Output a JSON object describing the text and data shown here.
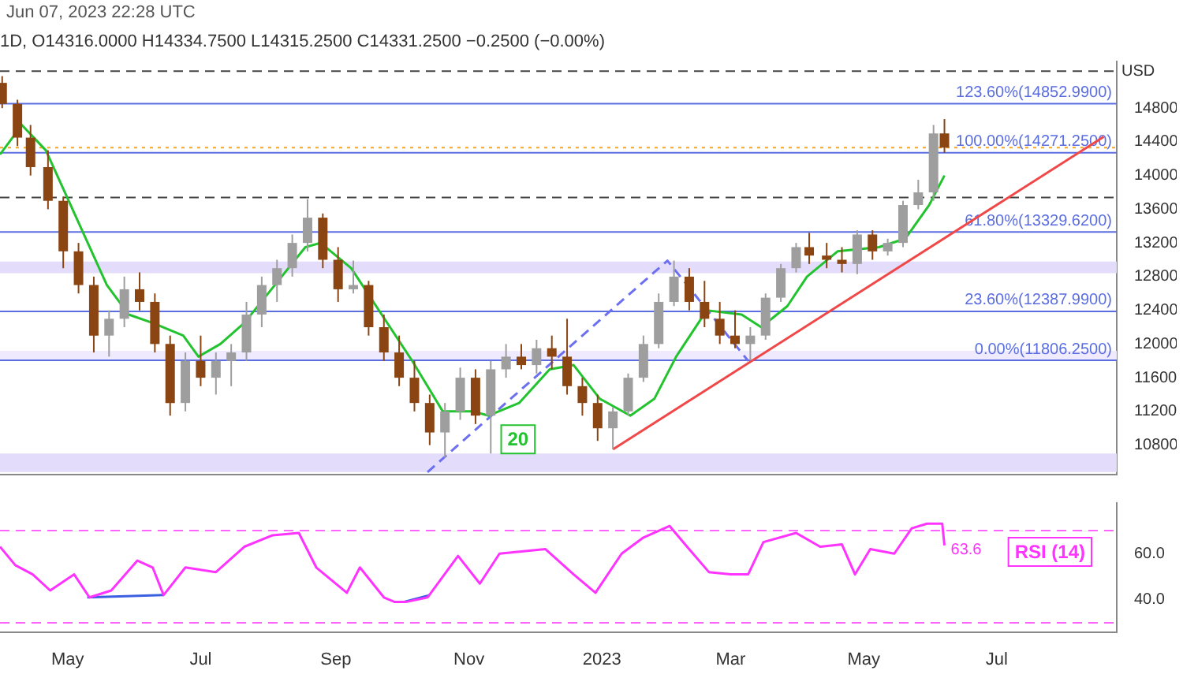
{
  "chart_data": [
    {
      "type": "candlestick",
      "title": "1D, O14316.0000 H14334.7500 L14315.2500 C14331.2500 −0.2500 (−0.00%)",
      "ylabel": "USD",
      "annotations": [
        "Jun 07, 2023 22:28 UTC"
      ],
      "x": [
        "2022-04-01",
        "2022-04-08",
        "2022-04-14",
        "2022-04-22",
        "2022-04-29",
        "2022-05-06",
        "2022-05-13",
        "2022-05-20",
        "2022-05-27",
        "2022-06-03",
        "2022-06-10",
        "2022-06-17",
        "2022-06-24",
        "2022-07-01",
        "2022-07-08",
        "2022-07-15",
        "2022-07-22",
        "2022-07-29",
        "2022-08-05",
        "2022-08-12",
        "2022-08-19",
        "2022-08-26",
        "2022-09-02",
        "2022-09-09",
        "2022-09-16",
        "2022-09-23",
        "2022-09-30",
        "2022-10-07",
        "2022-10-14",
        "2022-10-21",
        "2022-10-28",
        "2022-11-04",
        "2022-11-11",
        "2022-11-18",
        "2022-11-25",
        "2022-12-02",
        "2022-12-09",
        "2022-12-16",
        "2022-12-23",
        "2022-12-30",
        "2023-01-06",
        "2023-01-13",
        "2023-01-20",
        "2023-01-27",
        "2023-02-03",
        "2023-02-10",
        "2023-02-17",
        "2023-02-24",
        "2023-03-03",
        "2023-03-10",
        "2023-03-17",
        "2023-03-24",
        "2023-03-31",
        "2023-04-06",
        "2023-04-14",
        "2023-04-21",
        "2023-04-28",
        "2023-05-05",
        "2023-05-12",
        "2023-05-19",
        "2023-05-26",
        "2023-06-02",
        "2023-06-07"
      ],
      "ohlc": [
        [
          15100,
          15180,
          14800,
          14850
        ],
        [
          14850,
          14900,
          14350,
          14450
        ],
        [
          14450,
          14600,
          14000,
          14100
        ],
        [
          14100,
          14300,
          13600,
          13700
        ],
        [
          13700,
          13750,
          12900,
          13100
        ],
        [
          13100,
          13200,
          12600,
          12700
        ],
        [
          12700,
          12800,
          11900,
          12100
        ],
        [
          12100,
          12400,
          11850,
          12300
        ],
        [
          12300,
          12800,
          12200,
          12650
        ],
        [
          12650,
          12850,
          12400,
          12500
        ],
        [
          12500,
          12600,
          11900,
          12000
        ],
        [
          12000,
          12100,
          11150,
          11300
        ],
        [
          11300,
          11900,
          11200,
          11800
        ],
        [
          11800,
          12100,
          11500,
          11600
        ],
        [
          11600,
          11900,
          11400,
          11800
        ],
        [
          11800,
          12000,
          11500,
          11900
        ],
        [
          11900,
          12500,
          11800,
          12350
        ],
        [
          12350,
          12800,
          12200,
          12700
        ],
        [
          12700,
          13000,
          12500,
          12900
        ],
        [
          12900,
          13300,
          12800,
          13200
        ],
        [
          13200,
          13720,
          13100,
          13500
        ],
        [
          13500,
          13550,
          12900,
          13000
        ],
        [
          13000,
          13150,
          12500,
          12650
        ],
        [
          12650,
          12990,
          12600,
          12700
        ],
        [
          12700,
          12750,
          12100,
          12200
        ],
        [
          12200,
          12350,
          11800,
          11900
        ],
        [
          11900,
          12100,
          11500,
          11600
        ],
        [
          11600,
          11800,
          11200,
          11300
        ],
        [
          11300,
          11400,
          10800,
          10950
        ],
        [
          10950,
          11300,
          10650,
          11200
        ],
        [
          11200,
          11720,
          11100,
          11600
        ],
        [
          11600,
          11700,
          11050,
          11150
        ],
        [
          11150,
          11800,
          10700,
          11700
        ],
        [
          11700,
          12000,
          11600,
          11850
        ],
        [
          11850,
          12000,
          11700,
          11750
        ],
        [
          11750,
          12050,
          11650,
          11950
        ],
        [
          11950,
          12100,
          11700,
          11850
        ],
        [
          11850,
          12300,
          11400,
          11500
        ],
        [
          11500,
          11600,
          11150,
          11300
        ],
        [
          11300,
          11400,
          10850,
          11000
        ],
        [
          11000,
          11250,
          10750,
          11200
        ],
        [
          11200,
          11650,
          11150,
          11600
        ],
        [
          11600,
          12100,
          11550,
          12000
        ],
        [
          12000,
          12600,
          11950,
          12500
        ],
        [
          12500,
          12990,
          12450,
          12800
        ],
        [
          12800,
          12900,
          12400,
          12500
        ],
        [
          12500,
          12750,
          12200,
          12300
        ],
        [
          12300,
          12500,
          12000,
          12100
        ],
        [
          12100,
          12400,
          11950,
          12000
        ],
        [
          12000,
          12200,
          11806,
          12100
        ],
        [
          12100,
          12600,
          12050,
          12550
        ],
        [
          12550,
          12950,
          12500,
          12900
        ],
        [
          12900,
          13200,
          12850,
          13150
        ],
        [
          13150,
          13320,
          12950,
          13050
        ],
        [
          13050,
          13200,
          12900,
          13000
        ],
        [
          13000,
          13150,
          12850,
          12950
        ],
        [
          12950,
          13350,
          12830,
          13300
        ],
        [
          13300,
          13350,
          13000,
          13100
        ],
        [
          13100,
          13250,
          13050,
          13200
        ],
        [
          13200,
          13700,
          13150,
          13650
        ],
        [
          13650,
          13950,
          13600,
          13800
        ],
        [
          13800,
          14600,
          13700,
          14500
        ],
        [
          14500,
          14670,
          14271,
          14331
        ]
      ],
      "colors": [
        "#8b4513",
        "#8b4513",
        "#8b4513",
        "#8b4513",
        "#8b4513",
        "#8b4513",
        "#8b4513",
        "#9e9e9e",
        "#9e9e9e",
        "#8b4513",
        "#8b4513",
        "#8b4513",
        "#9e9e9e",
        "#8b4513",
        "#9e9e9e",
        "#9e9e9e",
        "#9e9e9e",
        "#9e9e9e",
        "#9e9e9e",
        "#9e9e9e",
        "#9e9e9e",
        "#8b4513",
        "#8b4513",
        "#9e9e9e",
        "#8b4513",
        "#8b4513",
        "#8b4513",
        "#8b4513",
        "#8b4513",
        "#9e9e9e",
        "#9e9e9e",
        "#8b4513",
        "#9e9e9e",
        "#9e9e9e",
        "#8b4513",
        "#9e9e9e",
        "#8b4513",
        "#8b4513",
        "#8b4513",
        "#8b4513",
        "#9e9e9e",
        "#9e9e9e",
        "#9e9e9e",
        "#9e9e9e",
        "#9e9e9e",
        "#8b4513",
        "#8b4513",
        "#8b4513",
        "#8b4513",
        "#9e9e9e",
        "#9e9e9e",
        "#9e9e9e",
        "#9e9e9e",
        "#8b4513",
        "#8b4513",
        "#8b4513",
        "#9e9e9e",
        "#8b4513",
        "#9e9e9e",
        "#9e9e9e",
        "#9e9e9e",
        "#9e9e9e",
        "#8b4513"
      ],
      "series": [
        {
          "name": "20",
          "type": "line",
          "color": "#22c32e",
          "x": [
            "2022-03-31",
            "2022-04-10",
            "2022-04-21",
            "2022-05-05",
            "2022-05-19",
            "2022-05-29",
            "2022-06-09",
            "2022-06-23",
            "2022-06-30",
            "2022-07-10",
            "2022-07-21",
            "2022-08-04",
            "2022-08-18",
            "2022-08-25",
            "2022-09-08",
            "2022-09-22",
            "2022-10-06",
            "2022-10-20",
            "2022-11-03",
            "2022-11-10",
            "2022-11-24",
            "2022-12-08",
            "2022-12-19",
            "2022-12-31",
            "2023-01-14",
            "2023-01-25",
            "2023-02-04",
            "2023-02-18",
            "2023-03-06",
            "2023-03-15",
            "2023-03-27",
            "2023-04-05",
            "2023-04-19",
            "2023-05-08",
            "2023-05-20",
            "2023-05-31",
            "2023-06-07"
          ],
          "values": [
            14250,
            14600,
            14300,
            13500,
            12700,
            12350,
            12250,
            12100,
            11850,
            12000,
            12250,
            12700,
            13150,
            13200,
            12900,
            12350,
            11800,
            11200,
            11200,
            11150,
            11300,
            11700,
            11750,
            11350,
            11150,
            11350,
            11850,
            12400,
            12350,
            12200,
            12450,
            12800,
            13100,
            13150,
            13250,
            13650,
            14000
          ]
        },
        {
          "type": "line",
          "color": "#f04848",
          "x": [
            "2023-01-06",
            "2023-08-19"
          ],
          "values": [
            10750,
            14460
          ]
        },
        {
          "type": "line",
          "color": "#6b6ff0",
          "line_style": "dashed",
          "x": [
            "2022-10-13",
            "2023-01-31",
            "2023-03-09"
          ],
          "values": [
            10480,
            12990,
            11800
          ]
        }
      ],
      "ref_lines": [
        {
          "axis": "y",
          "value": 14852.99,
          "label": "123.60%(14852.9900)",
          "color": "#5b6ee1"
        },
        {
          "axis": "y",
          "value": 14271.25,
          "label": "100.00%(14271.2500)",
          "color": "#5b6ee1"
        },
        {
          "axis": "y",
          "value": 13329.62,
          "label": "61.80%(13329.6200)",
          "color": "#5b6ee1"
        },
        {
          "axis": "y",
          "value": 12387.99,
          "label": "23.60%(12387.9900)",
          "color": "#5b6ee1"
        },
        {
          "axis": "y",
          "value": 11806.25,
          "label": "0.00%(11806.2500)",
          "color": "#5b6ee1"
        },
        {
          "axis": "y",
          "value": 15240,
          "color": "#444444",
          "line_style": "dashed"
        },
        {
          "axis": "y",
          "value": 13740,
          "color": "#444444",
          "line_style": "dashed"
        },
        {
          "axis": "y",
          "value": 14331.25,
          "color": "#f5a623",
          "line_style": "dotted"
        }
      ],
      "bands": [
        {
          "axis": "y",
          "from": 12840,
          "to": 12980,
          "color": "#e4dcfb"
        },
        {
          "axis": "y",
          "from": 11806,
          "to": 11920,
          "color": "#efeafd"
        },
        {
          "axis": "y",
          "from": 10480,
          "to": 10700,
          "color": "#e4dcfb"
        }
      ],
      "xlim": [
        "2022-03-31",
        "2023-08-25"
      ],
      "ylim": [
        10450,
        15350
      ],
      "yticks": [
        10800,
        11200,
        11600,
        12000,
        12400,
        12800,
        13200,
        13600,
        14000,
        14400,
        14800
      ],
      "tick_labels": "y"
    },
    {
      "type": "line",
      "series": [
        {
          "name": "RSI (14)",
          "color": "#ff33ff",
          "x": [
            "2022-03-31",
            "2022-04-07",
            "2022-04-15",
            "2022-04-23",
            "2022-05-04",
            "2022-05-11",
            "2022-05-21",
            "2022-06-02",
            "2022-06-09",
            "2022-06-14",
            "2022-06-24",
            "2022-07-08",
            "2022-07-21",
            "2022-08-03",
            "2022-08-15",
            "2022-08-23",
            "2022-09-06",
            "2022-09-12",
            "2022-09-23",
            "2022-09-28",
            "2022-10-03",
            "2022-10-13",
            "2022-10-27",
            "2022-11-06",
            "2022-11-15",
            "2022-12-06",
            "2022-12-19",
            "2022-12-29",
            "2023-01-10",
            "2023-01-20",
            "2023-02-01",
            "2023-02-09",
            "2023-02-19",
            "2023-03-01",
            "2023-03-09",
            "2023-03-16",
            "2023-03-31",
            "2023-04-11",
            "2023-04-21",
            "2023-04-27",
            "2023-05-04",
            "2023-05-15",
            "2023-05-23",
            "2023-05-30",
            "2023-06-06",
            "2023-06-07"
          ],
          "values": [
            63,
            55,
            51,
            44,
            51,
            41,
            44,
            57,
            54,
            42,
            54,
            52,
            63,
            68,
            69,
            54,
            43,
            54,
            41,
            39,
            39,
            41,
            59,
            47,
            60,
            62,
            51,
            43,
            60,
            67,
            72,
            63,
            52,
            51,
            51,
            65,
            69,
            63,
            64,
            51,
            62,
            60,
            71,
            73,
            73,
            63.6
          ],
          "value_labels": [
            null,
            null,
            null,
            null,
            null,
            null,
            null,
            null,
            null,
            null,
            null,
            null,
            null,
            null,
            null,
            null,
            null,
            null,
            null,
            null,
            null,
            null,
            null,
            null,
            null,
            null,
            null,
            null,
            null,
            null,
            null,
            null,
            null,
            null,
            null,
            null,
            null,
            null,
            null,
            null,
            null,
            null,
            null,
            null,
            null,
            "63.6"
          ]
        },
        {
          "color": "#3a5fe0",
          "x": [
            "2022-05-10",
            "2022-06-14"
          ],
          "values": [
            41,
            42
          ]
        },
        {
          "color": "#3a5fe0",
          "x": [
            "2022-10-02",
            "2022-10-14"
          ],
          "values": [
            39,
            42
          ]
        }
      ],
      "ref_lines": [
        {
          "axis": "y",
          "value": 70,
          "color": "#ff66ff",
          "line_style": "dashed"
        },
        {
          "axis": "y",
          "value": 30,
          "color": "#ff66ff",
          "line_style": "dashed"
        }
      ],
      "xlim": [
        "2022-03-31",
        "2023-08-25"
      ],
      "xticks": [
        {
          "value": "2022-05-01",
          "label": "May"
        },
        {
          "value": "2022-07-01",
          "label": "Jul"
        },
        {
          "value": "2022-09-01",
          "label": "Sep"
        },
        {
          "value": "2022-11-01",
          "label": "Nov"
        },
        {
          "value": "2023-01-01",
          "label": "2023"
        },
        {
          "value": "2023-03-01",
          "label": "Mar"
        },
        {
          "value": "2023-05-01",
          "label": "May"
        },
        {
          "value": "2023-07-01",
          "label": "Jul"
        }
      ],
      "ylim": [
        26,
        82
      ],
      "yticks": [
        {
          "value": 40,
          "label": "40.0"
        },
        {
          "value": 60,
          "label": "60.0"
        }
      ],
      "legend": "right"
    }
  ]
}
